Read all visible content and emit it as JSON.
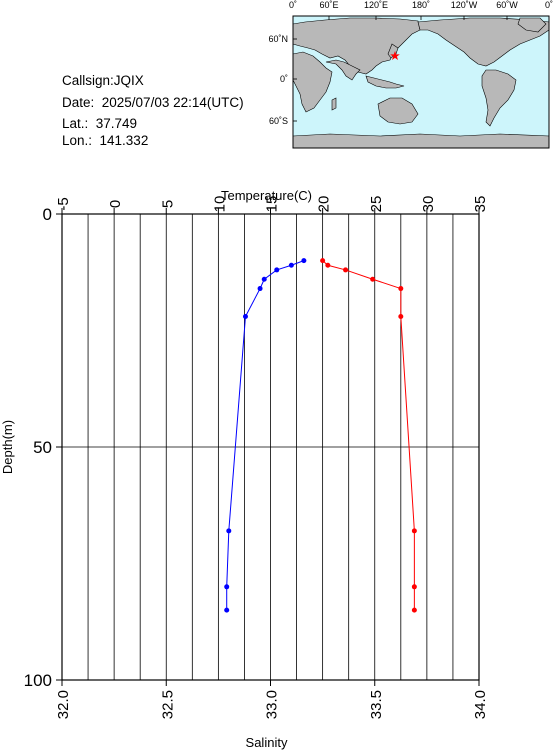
{
  "info": {
    "callsign": "Callsign:JQIX",
    "date": "Date:  2025/07/03 22:14(UTC)",
    "lat": "Lat.:  37.749",
    "lon": "Lon.:  141.332"
  },
  "map": {
    "lon_ticks": [
      "0˚",
      "60˚E",
      "120˚E",
      "180˚",
      "120˚W",
      "60˚W",
      "0˚"
    ],
    "lat_ticks": [
      "60˚N",
      "0˚",
      "60˚S"
    ],
    "colors": {
      "ocean": "#cdf5fb",
      "land": "#b8b8b8",
      "marker": "#ff0000"
    }
  },
  "chart_data": {
    "type": "line",
    "title": "",
    "y_axis": {
      "label": "Depth(m)",
      "range": [
        0,
        100
      ],
      "inverted": true,
      "ticks": [
        0,
        50,
        100
      ],
      "grid": [
        50
      ]
    },
    "top_axis": {
      "label": "Temperature(C)",
      "range": [
        -5,
        35
      ],
      "ticks": [
        -5,
        0,
        5,
        10,
        15,
        20,
        25,
        30,
        35
      ],
      "grid": "vertical every 2.5"
    },
    "bottom_axis": {
      "label": "Salinity",
      "range": [
        32.0,
        34.0
      ],
      "ticks": [
        "32.0",
        "32.5",
        "33.0",
        "33.5",
        "34.0"
      ]
    },
    "series": [
      {
        "quantity": "temperature",
        "axis": "top",
        "color": "#ff0000",
        "points": [
          {
            "x": 20.0,
            "y": 10
          },
          {
            "x": 20.5,
            "y": 11
          },
          {
            "x": 22.2,
            "y": 12
          },
          {
            "x": 24.8,
            "y": 14
          },
          {
            "x": 27.5,
            "y": 16
          },
          {
            "x": 27.5,
            "y": 22
          },
          {
            "x": 28.8,
            "y": 68
          },
          {
            "x": 28.8,
            "y": 80
          },
          {
            "x": 28.8,
            "y": 85
          }
        ]
      },
      {
        "quantity": "salinity",
        "axis": "bottom",
        "color": "#0000ff",
        "points": [
          {
            "x": 33.16,
            "y": 10
          },
          {
            "x": 33.1,
            "y": 11
          },
          {
            "x": 33.03,
            "y": 12
          },
          {
            "x": 32.97,
            "y": 14
          },
          {
            "x": 32.95,
            "y": 16
          },
          {
            "x": 32.88,
            "y": 22
          },
          {
            "x": 32.8,
            "y": 68
          },
          {
            "x": 32.79,
            "y": 80
          },
          {
            "x": 32.79,
            "y": 85
          }
        ]
      }
    ]
  }
}
